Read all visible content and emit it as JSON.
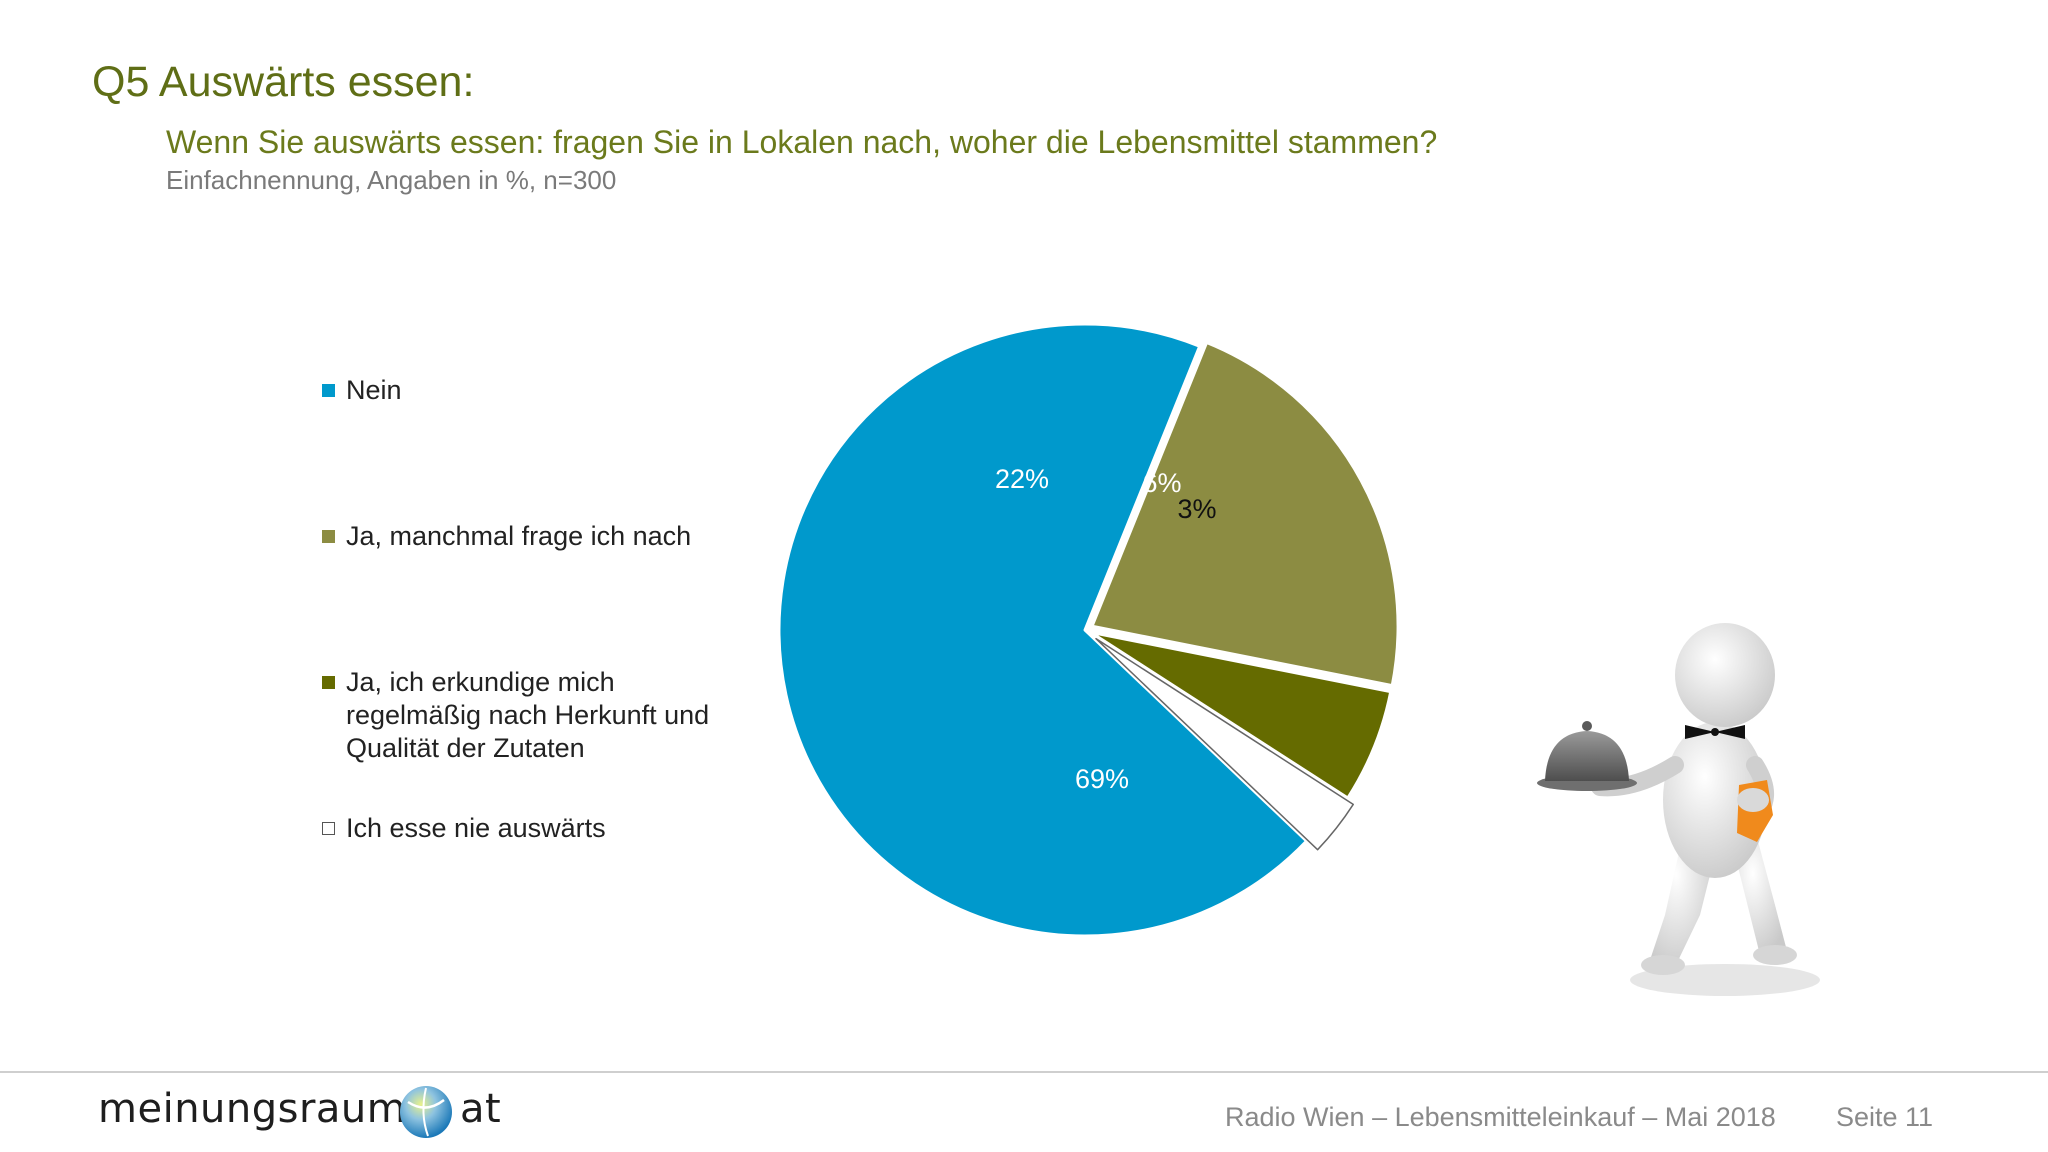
{
  "slide": {
    "title": "Q5 Auswärts essen:",
    "question": "Wenn Sie auswärts essen: fragen Sie in Lokalen nach, woher die Lebensmittel stammen?",
    "note": "Einfachnennung, Angaben in %, n=300"
  },
  "chart_data": {
    "type": "pie",
    "title": "",
    "categories": [
      "Nein",
      "Ja, manchmal frage ich nach",
      "Ja, ich erkundige mich regelmäßig nach Herkunft und Qualität der Zutaten",
      "Ich esse nie auswärts"
    ],
    "values": [
      69,
      22,
      6,
      3
    ],
    "data_labels": [
      "69%",
      "22%",
      "6%",
      "3%"
    ],
    "colors": [
      "#0099cc",
      "#8c8c42",
      "#656b00",
      "#ffffff"
    ],
    "label_colors": [
      "#ffffff",
      "#ffffff",
      "#ffffff",
      "#111111"
    ],
    "legend_placement": "left",
    "start_angle_deg": 22,
    "direction": "clockwise-from-top"
  },
  "legend": {
    "items": [
      {
        "label": "Nein"
      },
      {
        "label": "Ja, manchmal frage ich nach"
      },
      {
        "label": "Ja, ich erkundige mich\nregelmäßig nach Herkunft und\nQualität der Zutaten"
      },
      {
        "label": "Ich esse nie auswärts"
      }
    ]
  },
  "footer": {
    "logo_left": "meinungsraum",
    "logo_right": "at",
    "source": "Radio Wien – Lebensmitteleinkauf – Mai 2018",
    "page": "Seite 11"
  }
}
